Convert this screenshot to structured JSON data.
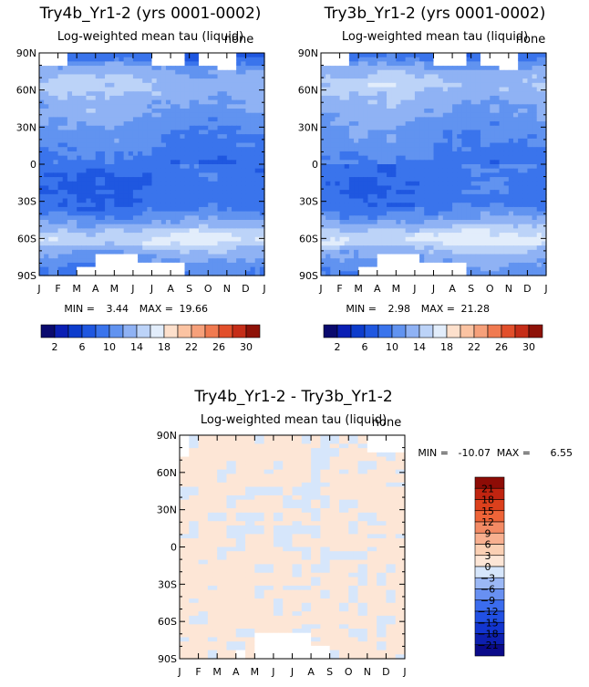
{
  "chart_data": [
    {
      "type": "heatmap",
      "title": "Try4b_Yr1-2 (yrs 0001-0002)",
      "subtitle": "Log-weighted mean tau (liquid)",
      "corner_label": "none",
      "x_tick_labels": [
        "J",
        "F",
        "M",
        "A",
        "M",
        "J",
        "J",
        "A",
        "S",
        "O",
        "N",
        "D",
        "J"
      ],
      "y_tick_labels": [
        "90N",
        "60N",
        "30N",
        "0",
        "30S",
        "60S",
        "90S"
      ],
      "x_range": [
        0,
        12
      ],
      "y_range": [
        -90,
        90
      ],
      "min_label": "MIN =",
      "min_value": "3.44",
      "max_label": "MAX =",
      "max_value": "19.66",
      "colorbar": {
        "orientation": "horizontal",
        "levels": [
          0,
          2,
          4,
          6,
          8,
          10,
          12,
          14,
          16,
          18,
          20,
          22,
          24,
          26,
          28,
          30,
          32
        ],
        "labeled_ticks": [
          "2",
          "6",
          "10",
          "14",
          "18",
          "22",
          "26",
          "30"
        ],
        "colors": [
          "#0a0a6e",
          "#0a1fb4",
          "#0d3ccc",
          "#1f57e0",
          "#3a74ec",
          "#6193f0",
          "#8fb2f4",
          "#bcd3f8",
          "#e2edfb",
          "#fde0cc",
          "#fbc3a2",
          "#f6a07a",
          "#f07a50",
          "#e24f2b",
          "#c52d18",
          "#8e1208"
        ]
      },
      "notes": "Zonal tau: ~8-11 over most latitudes, higher (14-18) near 60S and 60-75N; blank (missing) patches near both poles."
    },
    {
      "type": "heatmap",
      "title": "Try3b_Yr1-2 (yrs 0001-0002)",
      "subtitle": "Log-weighted mean tau (liquid)",
      "corner_label": "none",
      "x_tick_labels": [
        "J",
        "F",
        "M",
        "A",
        "M",
        "J",
        "J",
        "A",
        "S",
        "O",
        "N",
        "D",
        "J"
      ],
      "y_tick_labels": [
        "90N",
        "60N",
        "30N",
        "0",
        "30S",
        "60S",
        "90S"
      ],
      "x_range": [
        0,
        12
      ],
      "y_range": [
        -90,
        90
      ],
      "min_label": "MIN =",
      "min_value": "2.98",
      "max_label": "MAX =",
      "max_value": "21.28",
      "colorbar": {
        "orientation": "horizontal",
        "levels": [
          0,
          2,
          4,
          6,
          8,
          10,
          12,
          14,
          16,
          18,
          20,
          22,
          24,
          26,
          28,
          30,
          32
        ],
        "labeled_ticks": [
          "2",
          "6",
          "10",
          "14",
          "18",
          "22",
          "26",
          "30"
        ],
        "colors": [
          "#0a0a6e",
          "#0a1fb4",
          "#0d3ccc",
          "#1f57e0",
          "#3a74ec",
          "#6193f0",
          "#8fb2f4",
          "#bcd3f8",
          "#e2edfb",
          "#fde0cc",
          "#fbc3a2",
          "#f6a07a",
          "#f07a50",
          "#e24f2b",
          "#c52d18",
          "#8e1208"
        ]
      },
      "notes": "Very similar pattern to Try4b, slightly larger extremes."
    },
    {
      "type": "heatmap",
      "title": "Try4b_Yr1-2 - Try3b_Yr1-2",
      "subtitle": "Log-weighted mean tau (liquid)",
      "corner_label": "none",
      "x_tick_labels": [
        "J",
        "F",
        "M",
        "A",
        "M",
        "J",
        "J",
        "A",
        "S",
        "O",
        "N",
        "D",
        "J"
      ],
      "y_tick_labels": [
        "90N",
        "60N",
        "30N",
        "0",
        "30S",
        "60S",
        "90S"
      ],
      "x_range": [
        0,
        12
      ],
      "y_range": [
        -90,
        90
      ],
      "min_label": "MIN =",
      "min_value": "-10.07",
      "max_label": "MAX =",
      "max_value": "6.55",
      "colorbar": {
        "orientation": "vertical",
        "levels": [
          -24,
          -21,
          -18,
          -15,
          -12,
          -9,
          -6,
          -3,
          0,
          3,
          6,
          9,
          12,
          15,
          18,
          21,
          24
        ],
        "labeled_ticks": [
          "21",
          "18",
          "15",
          "12",
          "9",
          "6",
          "3",
          "0",
          "-3",
          "-6",
          "-9",
          "-12",
          "-15",
          "-18",
          "-21"
        ],
        "colors": [
          "#0a0a8a",
          "#0d1fb0",
          "#1235d0",
          "#2150e4",
          "#3b6cee",
          "#6890f2",
          "#9bb8f6",
          "#d6e6fb",
          "#fde6d6",
          "#fbd0b4",
          "#f8b090",
          "#f38a64",
          "#ee6438",
          "#dc401c",
          "#c02410",
          "#8e0c06"
        ]
      },
      "notes": "Differences mostly within [-3, 3]: light peach (0 to 3) dominant, light blue (-3 to 0) patches; blank regions near poles."
    }
  ]
}
